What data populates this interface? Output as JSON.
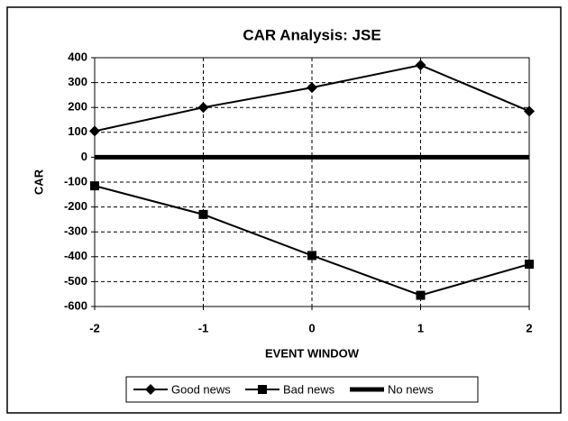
{
  "chart_data": {
    "type": "line",
    "title": "CAR Analysis: JSE",
    "x_label": "EVENT WINDOW",
    "y_label": "CAR",
    "x": [
      -2,
      -1,
      0,
      1,
      2
    ],
    "xlim": [
      -2,
      2
    ],
    "xticks": [
      -2,
      -1,
      0,
      1,
      2
    ],
    "ylim": [
      -600,
      400
    ],
    "yticks": [
      -600,
      -500,
      -400,
      -300,
      -200,
      -100,
      0,
      100,
      200,
      300,
      400
    ],
    "grid": true,
    "series": [
      {
        "name": "Good news",
        "color": "#000000",
        "marker": "diamond",
        "line_width": 2,
        "values": [
          105,
          200,
          280,
          370,
          185
        ]
      },
      {
        "name": "Bad news",
        "color": "#000000",
        "marker": "square",
        "line_width": 2,
        "values": [
          -115,
          -230,
          -395,
          -555,
          -430
        ]
      },
      {
        "name": "No news",
        "color": "#000000",
        "marker": "none",
        "line_width": 5,
        "values": [
          0,
          0,
          0,
          0,
          0
        ]
      }
    ]
  }
}
